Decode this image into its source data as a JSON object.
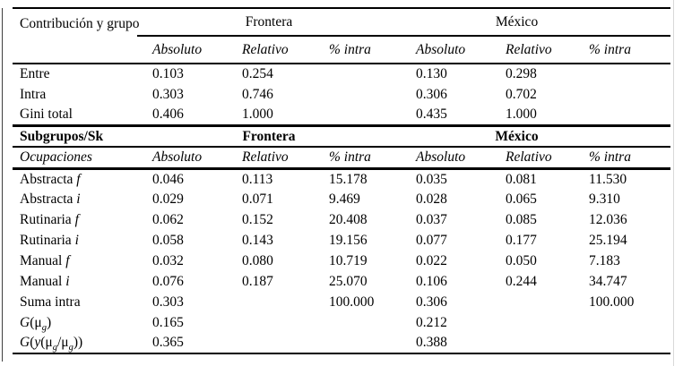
{
  "colors": {
    "background": "#ffffff",
    "text": "#000000",
    "rule": "#000000"
  },
  "table": {
    "row_header": "Contribución y grupo",
    "groups": [
      "Frontera",
      "México"
    ],
    "subheaders": [
      "Absoluto",
      "Relativo",
      "% intra",
      "Absoluto",
      "Relativo",
      "% intra"
    ],
    "section1": {
      "rows": [
        {
          "label_parts": [
            {
              "t": "Entre"
            }
          ],
          "values": [
            "0.103",
            "0.254",
            "",
            "0.130",
            "0.298",
            ""
          ]
        },
        {
          "label_parts": [
            {
              "t": "Intra"
            }
          ],
          "values": [
            "0.303",
            "0.746",
            "",
            "0.306",
            "0.702",
            ""
          ]
        },
        {
          "label_parts": [
            {
              "t": "Gini total"
            }
          ],
          "values": [
            "0.406",
            "1.000",
            "",
            "0.435",
            "1.000",
            ""
          ]
        }
      ]
    },
    "section2": {
      "title": "Subgrupos/Sk",
      "groups": [
        "Frontera",
        "México"
      ],
      "subheader_label": "Ocupaciones",
      "subheaders": [
        "Absoluto",
        "Relativo",
        "% intra",
        "Absoluto",
        "Relativo",
        "% intra"
      ],
      "rows": [
        {
          "label_parts": [
            {
              "t": "Abstracta "
            },
            {
              "t": "f",
              "s": "i"
            }
          ],
          "values": [
            "0.046",
            "0.113",
            "15.178",
            "0.035",
            "0.081",
            "11.530"
          ]
        },
        {
          "label_parts": [
            {
              "t": "Abstracta "
            },
            {
              "t": "i",
              "s": "i"
            }
          ],
          "values": [
            "0.029",
            "0.071",
            "9.469",
            "0.028",
            "0.065",
            "9.310"
          ]
        },
        {
          "label_parts": [
            {
              "t": "Rutinaria "
            },
            {
              "t": "f",
              "s": "i"
            }
          ],
          "values": [
            "0.062",
            "0.152",
            "20.408",
            "0.037",
            "0.085",
            "12.036"
          ]
        },
        {
          "label_parts": [
            {
              "t": "Rutinaria "
            },
            {
              "t": "i",
              "s": "i"
            }
          ],
          "values": [
            "0.058",
            "0.143",
            "19.156",
            "0.077",
            "0.177",
            "25.194"
          ]
        },
        {
          "label_parts": [
            {
              "t": "Manual "
            },
            {
              "t": "f",
              "s": "i"
            }
          ],
          "values": [
            "0.032",
            "0.080",
            "10.719",
            "0.022",
            "0.050",
            "7.183"
          ]
        },
        {
          "label_parts": [
            {
              "t": "Manual "
            },
            {
              "t": "i",
              "s": "i"
            }
          ],
          "values": [
            "0.076",
            "0.187",
            "25.070",
            "0.106",
            "0.244",
            "34.747"
          ]
        },
        {
          "label_parts": [
            {
              "t": "Suma intra"
            }
          ],
          "values": [
            "0.303",
            "",
            "100.000",
            "0.306",
            "",
            "100.000"
          ]
        },
        {
          "label_parts": [
            {
              "t": "G",
              "s": "i"
            },
            {
              "t": "(μ"
            },
            {
              "t": "g",
              "s": "sub"
            },
            {
              "t": ")"
            }
          ],
          "values": [
            "0.165",
            "",
            "",
            "0.212",
            "",
            ""
          ]
        },
        {
          "label_parts": [
            {
              "t": "G",
              "s": "i"
            },
            {
              "t": "("
            },
            {
              "t": "y",
              "s": "i"
            },
            {
              "t": "(μ"
            },
            {
              "t": "g",
              "s": "sub"
            },
            {
              "t": "/μ"
            },
            {
              "t": "g",
              "s": "sub"
            },
            {
              "t": "))"
            }
          ],
          "values": [
            "0.365",
            "",
            "",
            "0.388",
            "",
            ""
          ]
        }
      ]
    }
  }
}
